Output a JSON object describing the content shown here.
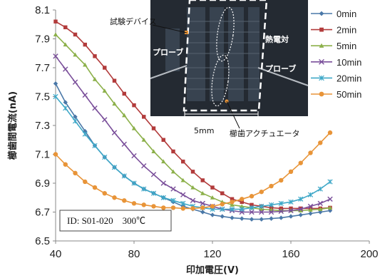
{
  "chart_data": {
    "type": "line",
    "title": "",
    "xlabel": "印加電圧(V)",
    "ylabel": "櫛歯間電流(nA)",
    "xlim": [
      40,
      200
    ],
    "ylim": [
      6.5,
      8.1
    ],
    "x_ticks": [
      "40",
      "80",
      "120",
      "160",
      "200"
    ],
    "y_ticks": [
      "6.5",
      "6.7",
      "6.9",
      "7.1",
      "7.3",
      "7.5",
      "7.7",
      "7.9",
      "8.1"
    ],
    "grid": false,
    "legend_position": "right",
    "series": [
      {
        "name": "0min",
        "color": "#4a78a8",
        "marker": "diamond",
        "x": [
          40,
          45,
          50,
          55,
          60,
          65,
          70,
          75,
          80,
          85,
          90,
          95,
          100,
          105,
          110,
          115,
          120,
          125,
          130,
          135,
          140,
          145,
          150,
          155,
          160,
          165,
          170,
          175,
          180
        ],
        "y": [
          7.59,
          7.46,
          7.36,
          7.26,
          7.16,
          7.08,
          7.01,
          6.95,
          6.9,
          6.86,
          6.83,
          6.8,
          6.77,
          6.74,
          6.72,
          6.7,
          6.68,
          6.67,
          6.66,
          6.655,
          6.65,
          6.65,
          6.655,
          6.66,
          6.67,
          6.68,
          6.69,
          6.7,
          6.71
        ]
      },
      {
        "name": "2min",
        "color": "#b23b3b",
        "marker": "square",
        "x": [
          40,
          45,
          50,
          55,
          60,
          65,
          70,
          75,
          80,
          85,
          90,
          95,
          100,
          105,
          110,
          115,
          120,
          125,
          130,
          135,
          140,
          145,
          150,
          155,
          160,
          165,
          170,
          175,
          180
        ],
        "y": [
          8.02,
          7.98,
          7.93,
          7.86,
          7.78,
          7.7,
          7.61,
          7.52,
          7.44,
          7.36,
          7.28,
          7.2,
          7.12,
          7.05,
          6.98,
          6.92,
          6.87,
          6.83,
          6.79,
          6.77,
          6.75,
          6.74,
          6.73,
          6.725,
          6.725,
          6.725,
          6.725,
          6.725,
          6.73
        ]
      },
      {
        "name": "5min",
        "color": "#8cb04a",
        "marker": "triangle",
        "x": [
          40,
          45,
          50,
          55,
          60,
          65,
          70,
          75,
          80,
          85,
          90,
          95,
          100,
          105,
          110,
          115,
          120,
          125,
          130,
          135,
          140,
          145,
          150,
          155,
          160,
          165,
          170,
          175,
          180
        ],
        "y": [
          7.93,
          7.86,
          7.79,
          7.72,
          7.62,
          7.54,
          7.45,
          7.37,
          7.28,
          7.2,
          7.12,
          7.05,
          6.98,
          6.92,
          6.87,
          6.83,
          6.8,
          6.77,
          6.75,
          6.74,
          6.73,
          6.72,
          6.715,
          6.71,
          6.71,
          6.71,
          6.715,
          6.72,
          6.73
        ]
      },
      {
        "name": "10min",
        "color": "#7a4f9a",
        "marker": "x",
        "x": [
          40,
          45,
          50,
          55,
          60,
          65,
          70,
          75,
          80,
          85,
          90,
          95,
          100,
          105,
          110,
          115,
          120,
          125,
          130,
          135,
          140,
          145,
          150,
          155,
          160,
          165,
          170,
          175,
          180
        ],
        "y": [
          7.78,
          7.69,
          7.6,
          7.51,
          7.42,
          7.34,
          7.25,
          7.17,
          7.09,
          7.02,
          6.96,
          6.9,
          6.86,
          6.82,
          6.78,
          6.76,
          6.74,
          6.72,
          6.71,
          6.7,
          6.7,
          6.7,
          6.7,
          6.705,
          6.71,
          6.72,
          6.74,
          6.76,
          6.79
        ]
      },
      {
        "name": "20min",
        "color": "#3fa8c8",
        "marker": "star",
        "x": [
          40,
          45,
          50,
          55,
          60,
          65,
          70,
          75,
          80,
          85,
          90,
          95,
          100,
          105,
          110,
          115,
          120,
          125,
          130,
          135,
          140,
          145,
          150,
          155,
          160,
          165,
          170,
          175,
          180
        ],
        "y": [
          7.5,
          7.42,
          7.33,
          7.24,
          7.16,
          7.08,
          7.01,
          6.95,
          6.9,
          6.86,
          6.83,
          6.8,
          6.78,
          6.76,
          6.74,
          6.73,
          6.72,
          6.72,
          6.72,
          6.72,
          6.73,
          6.74,
          6.75,
          6.76,
          6.77,
          6.79,
          6.82,
          6.86,
          6.91
        ]
      },
      {
        "name": "50min",
        "color": "#e89438",
        "marker": "circle",
        "x": [
          40,
          45,
          50,
          55,
          60,
          65,
          70,
          75,
          80,
          85,
          90,
          95,
          100,
          105,
          110,
          115,
          120,
          125,
          130,
          135,
          140,
          145,
          150,
          155,
          160,
          165,
          170,
          175,
          180
        ],
        "y": [
          7.1,
          7.03,
          6.97,
          6.91,
          6.87,
          6.83,
          6.8,
          6.78,
          6.76,
          6.75,
          6.74,
          6.73,
          6.73,
          6.725,
          6.725,
          6.73,
          6.74,
          6.755,
          6.77,
          6.79,
          6.81,
          6.84,
          6.88,
          6.92,
          6.98,
          7.04,
          7.11,
          7.18,
          7.25
        ]
      }
    ],
    "annotations": {
      "photo_labels": [
        "試験デバイス",
        "プローブ",
        "熱電対",
        "プローブ",
        "5mm",
        "櫛歯アクチュエータ"
      ],
      "id_box": "ID: S01-020　300℃"
    }
  }
}
